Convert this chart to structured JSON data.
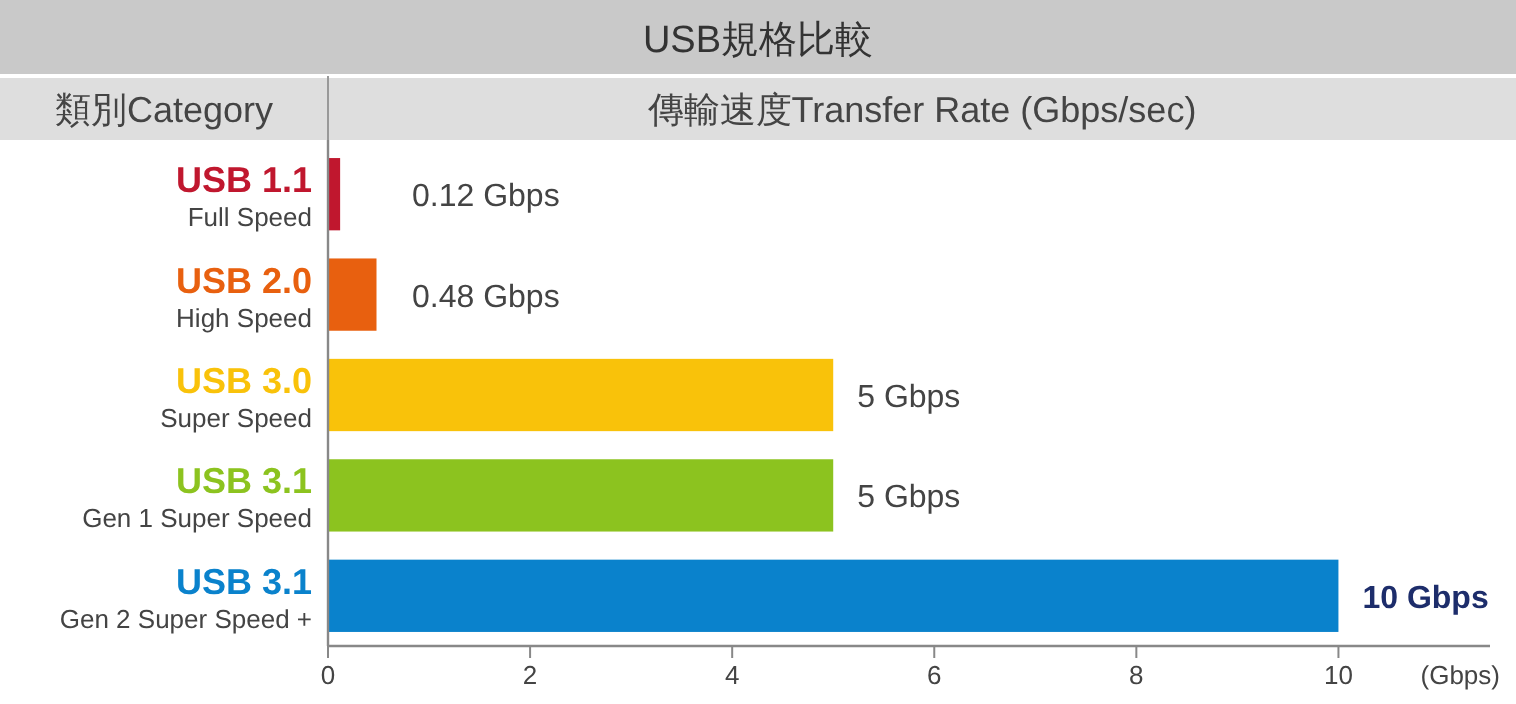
{
  "chart_data": {
    "type": "bar",
    "orientation": "horizontal",
    "title": "USB規格比較",
    "ylabel": "類別Category",
    "xlabel": "傳輸速度Transfer Rate (Gbps/sec)",
    "categories": [
      "USB 1.1\nFull Speed",
      "USB 2.0\nHigh Speed",
      "USB 3.0\nSuper Speed",
      "USB 3.1\nGen 1 Super Speed",
      "USB 3.1\nGen 2 Super Speed +"
    ],
    "values": [
      0.12,
      0.48,
      5,
      5,
      10
    ],
    "colors": [
      "#c0172e",
      "#e8600f",
      "#f9c20a",
      "#8cc31f",
      "#0a82cc"
    ],
    "value_labels": [
      "0.12 Gbps",
      "0.48 Gbps",
      "5 Gbps",
      "5 Gbps",
      "10 Gbps"
    ],
    "xlim": [
      0,
      11.5
    ],
    "xticks": [
      0,
      2,
      4,
      6,
      8,
      10
    ],
    "annotations": [
      "(Gbps)"
    ],
    "grid": false
  }
}
